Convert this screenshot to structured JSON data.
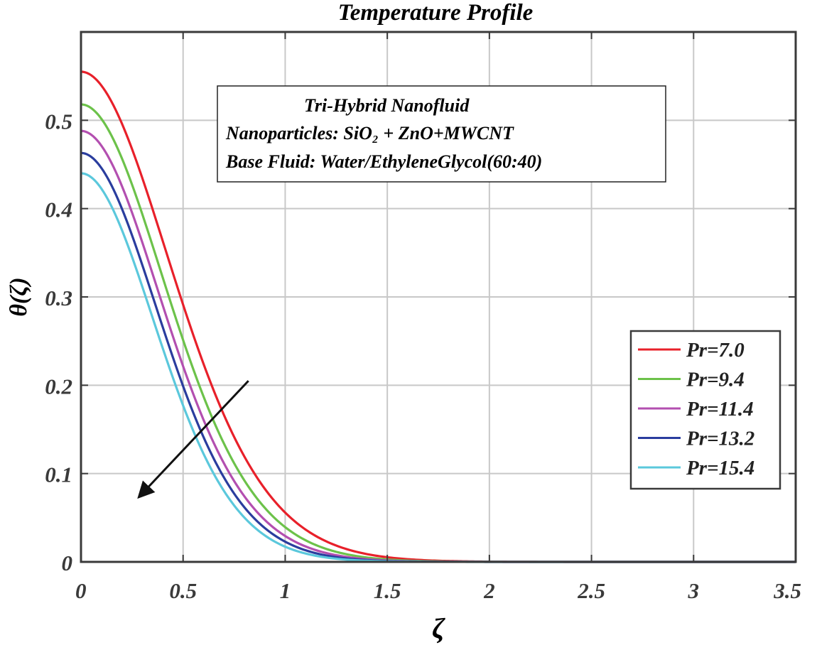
{
  "chart_data": {
    "type": "line",
    "title": "Temperature Profile",
    "xlabel": "ζ",
    "ylabel": "θ(ζ)",
    "xlim": [
      0,
      3.5
    ],
    "ylim": [
      0,
      0.6
    ],
    "xticks": [
      0,
      0.5,
      1,
      1.5,
      2,
      2.5,
      3,
      3.5
    ],
    "yticks": [
      0,
      0.1,
      0.2,
      0.3,
      0.4,
      0.5
    ],
    "xtick_labels": [
      "0",
      "0.5",
      "1",
      "1.5",
      "2",
      "2.5",
      "3",
      "3.5"
    ],
    "ytick_labels": [
      "0",
      "0.1",
      "0.2",
      "0.3",
      "0.4",
      "0.5"
    ],
    "grid": true,
    "legend_position": "right",
    "annotation": {
      "line1": "Tri-Hybrid Nanofluid",
      "line2": "Nanoparticles:  SiO₂ + ZnO+MWCNT",
      "line3": "Base Fluid: Water/EthyleneGlycol(60:40)"
    },
    "arrow": {
      "from": [
        0.82,
        0.205
      ],
      "to": [
        0.29,
        0.075
      ],
      "meaning": "increasing Pr"
    },
    "series": [
      {
        "name": "Pr=7.0",
        "color": "#e8202a",
        "theta0": 0.555,
        "decay": 2.94
      },
      {
        "name": "Pr=9.4",
        "color": "#6cc24a",
        "theta0": 0.518,
        "decay": 3.3
      },
      {
        "name": "Pr=11.4",
        "color": "#b34fb0",
        "theta0": 0.488,
        "decay": 3.6
      },
      {
        "name": "Pr=13.2",
        "color": "#2a3d9e",
        "theta0": 0.463,
        "decay": 3.85
      },
      {
        "name": "Pr=15.4",
        "color": "#5bc8dc",
        "theta0": 0.44,
        "decay": 4.15
      }
    ]
  }
}
